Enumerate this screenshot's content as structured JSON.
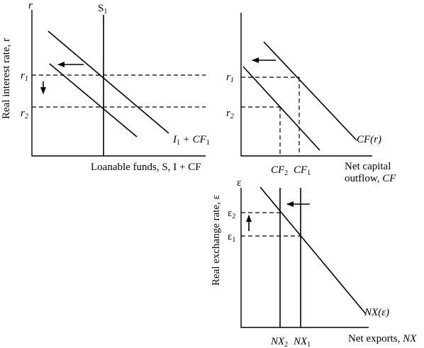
{
  "panel_a": {
    "y_axis_symbol": "r",
    "y_axis_title": "Real interest rate, r",
    "x_axis_title": "Loanable funds, S, I + CF",
    "supply_label": "S",
    "supply_sub": "1",
    "demand_label": "I",
    "demand_sub": "1",
    "demand_plus": " + CF",
    "demand_sub2": "1",
    "r1_label": "r",
    "r1_sub": "1",
    "r2_label": "r",
    "r2_sub": "2"
  },
  "panel_b": {
    "curve_label": "CF(r)",
    "r1_label": "r",
    "r1_sub": "1",
    "r2_label": "r",
    "r2_sub": "2",
    "cf2_label": "CF",
    "cf2_sub": "2",
    "cf1_label": "CF",
    "cf1_sub": "1",
    "x_title_line1": "Net capital",
    "x_title_line2_a": "outflow, ",
    "x_title_line2_b": "CF"
  },
  "panel_c": {
    "y_axis_symbol": "ε",
    "y_axis_title": "Real exchange rate, ε",
    "e2_label": "ε",
    "e2_sub": "2",
    "e1_label": "ε",
    "e1_sub": "1",
    "curve_label": "NX(ε)",
    "nx2_label": "NX",
    "nx2_sub": "2",
    "nx1_label": "NX",
    "nx1_sub": "1",
    "x_title_a": "Net exports, ",
    "x_title_b": "NX"
  }
}
